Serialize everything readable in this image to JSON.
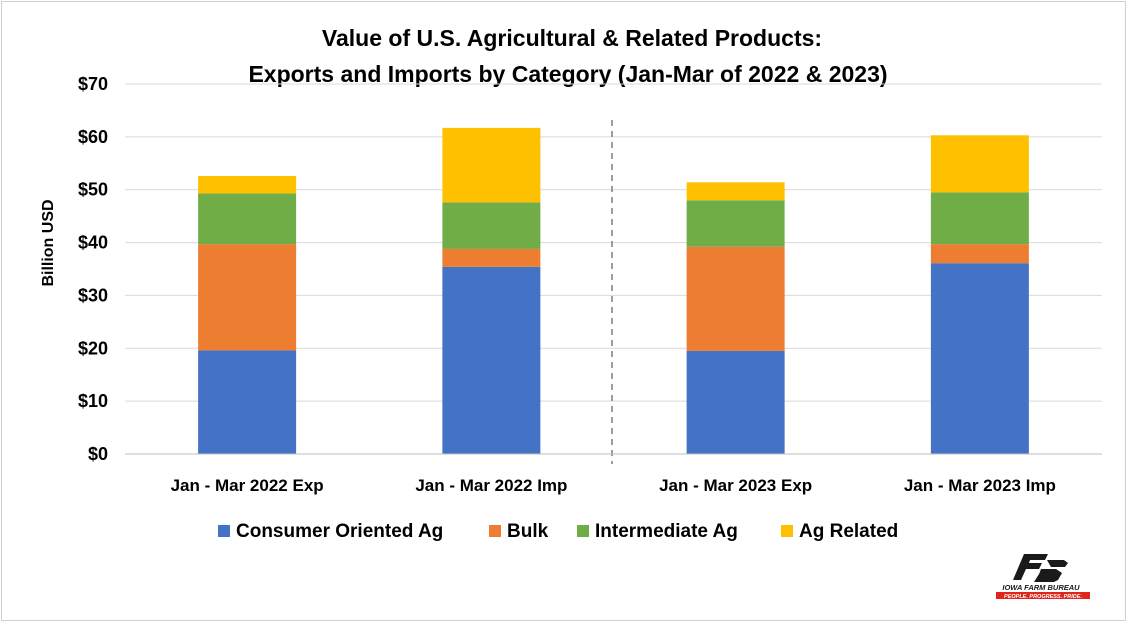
{
  "chart_data": {
    "type": "bar",
    "stacked": true,
    "title_line1": "Value of U.S. Agricultural & Related Products:",
    "title_line2": "Exports and Imports by Category  (Jan-Mar of 2022 & 2023)",
    "ylabel": "Billion USD",
    "xlabel": "",
    "ylim": [
      0,
      70
    ],
    "yticks": [
      0,
      10,
      20,
      30,
      40,
      50,
      60,
      70
    ],
    "ytick_labels": [
      "$0",
      "$10",
      "$20",
      "$30",
      "$40",
      "$50",
      "$60",
      "$70"
    ],
    "categories": [
      "Jan - Mar 2022 Exp",
      "Jan - Mar 2022 Imp",
      "Jan - Mar 2023 Exp",
      "Jan - Mar 2023 Imp"
    ],
    "series": [
      {
        "name": "Consumer Oriented Ag",
        "color": "#4472C4",
        "values": [
          19.6,
          35.4,
          19.5,
          36.1
        ]
      },
      {
        "name": "Bulk",
        "color": "#ED7D31",
        "values": [
          20.1,
          3.4,
          19.7,
          3.6
        ]
      },
      {
        "name": "Intermediate Ag",
        "color": "#70AD47",
        "values": [
          9.6,
          8.8,
          8.8,
          9.8
        ]
      },
      {
        "name": "Ag Related",
        "color": "#FFC000",
        "values": [
          3.3,
          14.1,
          3.4,
          10.8
        ]
      }
    ],
    "grid": true,
    "legend_position": "bottom",
    "divider": "dashed line between 2022 and 2023 groups"
  },
  "logo": {
    "mark": "FB",
    "name": "IOWA FARM BUREAU",
    "tagline": "PEOPLE. PROGRESS. PRIDE."
  }
}
